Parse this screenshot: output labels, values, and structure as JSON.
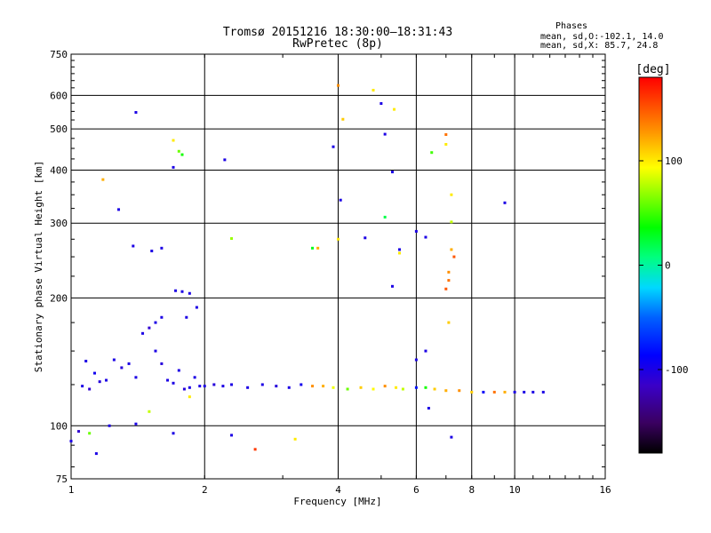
{
  "title_line1": "Tromsø 20151216 18:30:00–18:31:43",
  "title_line2": "RwPretec (8p)",
  "stats": {
    "heading": "Phases",
    "line1": "mean, sd,O:-102.1, 14.0",
    "line2": "mean, sd,X:  85.7, 24.8"
  },
  "chart_data": {
    "type": "scatter",
    "xlabel": "Frequency [MHz]",
    "ylabel": "Stationary phase Virtual Height [km]",
    "xscale": "log",
    "yscale": "log",
    "xlim": [
      1,
      16
    ],
    "ylim": [
      75,
      750
    ],
    "xticks": [
      1,
      2,
      4,
      6,
      8,
      10,
      16
    ],
    "xtick_labels": [
      "1",
      "2",
      "4",
      "6",
      "8",
      "10",
      "16"
    ],
    "yticks": [
      75,
      100,
      200,
      300,
      400,
      500,
      600,
      750
    ],
    "ytick_labels": [
      "75",
      "100",
      "200",
      "300",
      "400",
      "500",
      "600",
      "750"
    ],
    "grid": true,
    "colorbar": {
      "label": "[deg]",
      "range": [
        -180,
        180
      ],
      "ticks": [
        100,
        0,
        -100
      ],
      "tick_labels": [
        "100",
        "0",
        "-100"
      ]
    },
    "series": [
      {
        "points": [
          [
            1.0,
            92,
            -100
          ],
          [
            1.04,
            97,
            -110
          ],
          [
            1.06,
            124,
            -100
          ],
          [
            1.08,
            142,
            -100
          ],
          [
            1.1,
            122,
            -110
          ],
          [
            1.13,
            133,
            -95
          ],
          [
            1.16,
            127,
            -105
          ],
          [
            1.2,
            128,
            -100
          ],
          [
            1.25,
            143,
            -100
          ],
          [
            1.3,
            137,
            -105
          ],
          [
            1.35,
            140,
            -100
          ],
          [
            1.4,
            130,
            -100
          ],
          [
            1.45,
            165,
            -100
          ],
          [
            1.5,
            170,
            -110
          ],
          [
            1.55,
            150,
            -100
          ],
          [
            1.6,
            140,
            -105
          ],
          [
            1.65,
            128,
            -100
          ],
          [
            1.7,
            126,
            -100
          ],
          [
            1.75,
            135,
            -100
          ],
          [
            1.8,
            122,
            -105
          ],
          [
            1.85,
            123,
            -100
          ],
          [
            1.9,
            130,
            -100
          ],
          [
            1.95,
            124,
            -100
          ],
          [
            2.0,
            124,
            -100
          ],
          [
            2.1,
            125,
            -105
          ],
          [
            2.2,
            124,
            -100
          ],
          [
            2.3,
            125,
            -100
          ],
          [
            2.5,
            123,
            -100
          ],
          [
            2.7,
            125,
            -100
          ],
          [
            2.9,
            124,
            -105
          ],
          [
            3.1,
            123,
            -100
          ],
          [
            3.3,
            125,
            -95
          ],
          [
            3.5,
            124,
            130
          ],
          [
            3.7,
            124,
            120
          ],
          [
            3.9,
            123,
            90
          ],
          [
            4.2,
            122,
            60
          ],
          [
            4.5,
            123,
            110
          ],
          [
            4.8,
            122,
            95
          ],
          [
            5.1,
            124,
            130
          ],
          [
            5.4,
            123,
            100
          ],
          [
            5.6,
            122,
            80
          ],
          [
            6.0,
            123,
            -80
          ],
          [
            6.3,
            123,
            40
          ],
          [
            6.6,
            122,
            110
          ],
          [
            7.0,
            121,
            120
          ],
          [
            7.5,
            121,
            130
          ],
          [
            8.0,
            120,
            110
          ],
          [
            8.5,
            120,
            -90
          ],
          [
            9.0,
            120,
            140
          ],
          [
            9.5,
            120,
            120
          ],
          [
            10.0,
            120,
            -100
          ],
          [
            10.5,
            120,
            -100
          ],
          [
            11.0,
            120,
            -100
          ],
          [
            11.6,
            120,
            -100
          ],
          [
            1.38,
            265,
            -100
          ],
          [
            1.52,
            258,
            -100
          ],
          [
            1.6,
            262,
            -100
          ],
          [
            1.72,
            208,
            -100
          ],
          [
            1.78,
            207,
            -100
          ],
          [
            1.85,
            205,
            -100
          ],
          [
            1.92,
            190,
            -100
          ],
          [
            1.55,
            175,
            -100
          ],
          [
            1.6,
            180,
            -100
          ],
          [
            1.82,
            180,
            -100
          ],
          [
            1.7,
            406,
            -100
          ],
          [
            1.4,
            547,
            -100
          ],
          [
            1.28,
            323,
            -100
          ],
          [
            2.22,
            423,
            -100
          ],
          [
            3.9,
            454,
            -100
          ],
          [
            4.05,
            340,
            -100
          ],
          [
            4.6,
            277,
            -100
          ],
          [
            5.0,
            574,
            -100
          ],
          [
            5.1,
            486,
            -100
          ],
          [
            5.3,
            396,
            -100
          ],
          [
            5.5,
            260,
            -100
          ],
          [
            5.3,
            213,
            -100
          ],
          [
            6.0,
            287,
            -100
          ],
          [
            6.3,
            278,
            -100
          ],
          [
            9.5,
            335,
            -100
          ],
          [
            6.0,
            143,
            -100
          ],
          [
            6.3,
            150,
            -100
          ],
          [
            6.4,
            110,
            -100
          ],
          [
            7.2,
            94,
            -100
          ],
          [
            2.3,
            95,
            -100
          ],
          [
            1.14,
            86,
            -100
          ],
          [
            1.7,
            96,
            -100
          ],
          [
            1.22,
            100,
            -100
          ],
          [
            1.4,
            101,
            -100
          ],
          [
            1.18,
            380,
            120
          ],
          [
            1.7,
            470,
            100
          ],
          [
            1.75,
            443,
            60
          ],
          [
            1.78,
            435,
            40
          ],
          [
            2.3,
            276,
            70
          ],
          [
            3.5,
            262,
            30
          ],
          [
            3.6,
            262,
            120
          ],
          [
            4.0,
            633,
            130
          ],
          [
            4.1,
            527,
            110
          ],
          [
            4.0,
            275,
            100
          ],
          [
            4.8,
            617,
            100
          ],
          [
            5.1,
            310,
            20
          ],
          [
            5.35,
            556,
            100
          ],
          [
            5.5,
            255,
            100
          ],
          [
            6.5,
            440,
            50
          ],
          [
            7.0,
            485,
            140
          ],
          [
            7.0,
            460,
            100
          ],
          [
            7.2,
            350,
            100
          ],
          [
            7.2,
            302,
            80
          ],
          [
            7.2,
            260,
            120
          ],
          [
            7.3,
            250,
            150
          ],
          [
            7.1,
            230,
            130
          ],
          [
            7.1,
            220,
            140
          ],
          [
            7.0,
            210,
            150
          ],
          [
            7.1,
            175,
            110
          ],
          [
            2.6,
            88,
            160
          ],
          [
            3.2,
            93,
            100
          ],
          [
            1.1,
            96,
            60
          ],
          [
            1.5,
            108,
            80
          ],
          [
            1.85,
            117,
            100
          ]
        ]
      }
    ]
  }
}
